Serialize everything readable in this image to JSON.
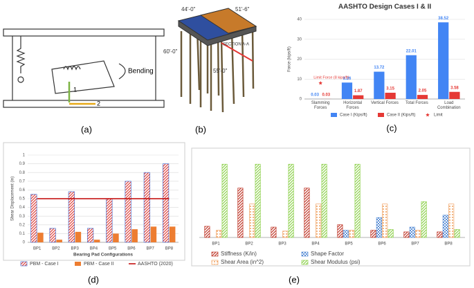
{
  "panel_labels": [
    "(a)",
    "(b)",
    "(c)",
    "(d)",
    "(e)"
  ],
  "sketch": {
    "labels": [
      "Bending",
      "1",
      "2"
    ]
  },
  "pier": {
    "labels": [
      "44'-0\"",
      "51'-6\"",
      "60'-0\"",
      "55'-0\"",
      "SECTION A-A"
    ]
  },
  "chart_data": [
    {
      "type": "bar",
      "title": "AASHTO Design Cases I & II",
      "y_label": "Force (kips/ft)",
      "categories": [
        "Slamming Forces",
        "Horizontal Forces",
        "Vertical Forces",
        "Total Forces",
        "Load Combination"
      ],
      "series": [
        {
          "name": "Case I (Kips/ft)",
          "color": "#4285f4",
          "kind": "bar",
          "fill_style": "solid",
          "values": [
            0.03,
            8.26,
            13.72,
            22.01,
            38.52
          ]
        },
        {
          "name": "Case II (Kips/ft)",
          "color": "#e53935",
          "kind": "bar",
          "fill_style": "solid",
          "values": [
            0.03,
            1.87,
            3.15,
            2.05,
            3.58
          ]
        },
        {
          "name": "Limit",
          "color": "#e53935",
          "kind": "marker",
          "values": [
            8,
            null,
            null,
            null,
            null
          ],
          "annotation": "Limit Force (8 kips/ft)"
        }
      ],
      "ylim": [
        0,
        40
      ],
      "yticks": [
        0,
        10,
        20,
        30,
        40
      ],
      "grid": true,
      "value_labels_shown": true
    },
    {
      "type": "bar",
      "y_label": "Shear Displacement (in)",
      "x_label": "Bearing Pad Configurations",
      "categories": [
        "BP1",
        "BP2",
        "BP3",
        "BP4",
        "BP5",
        "BP6",
        "BP7",
        "BP8"
      ],
      "series": [
        {
          "name": "PBM - Case I",
          "color": "#4a6fd1",
          "hatch_color": "#e0413a",
          "kind": "bar",
          "fill_style": "hatch",
          "values": [
            0.55,
            0.16,
            0.58,
            0.16,
            0.5,
            0.7,
            0.8,
            0.9
          ]
        },
        {
          "name": "PBM - Case II",
          "color": "#ed7d31",
          "kind": "bar",
          "fill_style": "solid",
          "values": [
            0.11,
            0.03,
            0.12,
            0.03,
            0.1,
            0.15,
            0.18,
            0.18
          ]
        },
        {
          "name": "AASHTO (2020)",
          "color": "#c00000",
          "kind": "line",
          "values": [
            0.5,
            0.5,
            0.5,
            0.5,
            0.5,
            0.5,
            0.5,
            0.5
          ]
        }
      ],
      "ylim": [
        0,
        1
      ],
      "yticks": [
        0,
        0.1,
        0.2,
        0.3,
        0.4,
        0.5,
        0.6,
        0.7,
        0.8,
        0.9,
        1
      ],
      "grid": true
    },
    {
      "type": "bar",
      "categories": [
        "BP1",
        "BP2",
        "BP3",
        "BP4",
        "BP5",
        "BP6",
        "BP7",
        "BP8"
      ],
      "series": [
        {
          "name": "Stiffness (K/in)",
          "color": "#c0392b",
          "kind": "bar",
          "fill_style": "hatch",
          "values": [
            0.14,
            0.62,
            0.13,
            0.62,
            0.16,
            0.09,
            0.07,
            0.07
          ]
        },
        {
          "name": "Shape Factor",
          "color": "#5b8fd6",
          "kind": "bar",
          "fill_style": "check",
          "values": [
            0,
            0,
            0,
            0,
            0.09,
            0.25,
            0.13,
            0.28
          ]
        },
        {
          "name": "Shear Area (in^2)",
          "color": "#f0a060",
          "kind": "bar",
          "fill_style": "dots",
          "values": [
            0.09,
            0.42,
            0.08,
            0.42,
            0.09,
            0.42,
            0.09,
            0.42
          ]
        },
        {
          "name": "Shear Modulus (psi)",
          "color": "#8fd14f",
          "kind": "bar",
          "fill_style": "hatch",
          "values": [
            0.92,
            0.92,
            0.92,
            0.92,
            0.92,
            0.1,
            0.45,
            0.1
          ]
        }
      ],
      "ylim": [
        0,
        1
      ]
    }
  ]
}
